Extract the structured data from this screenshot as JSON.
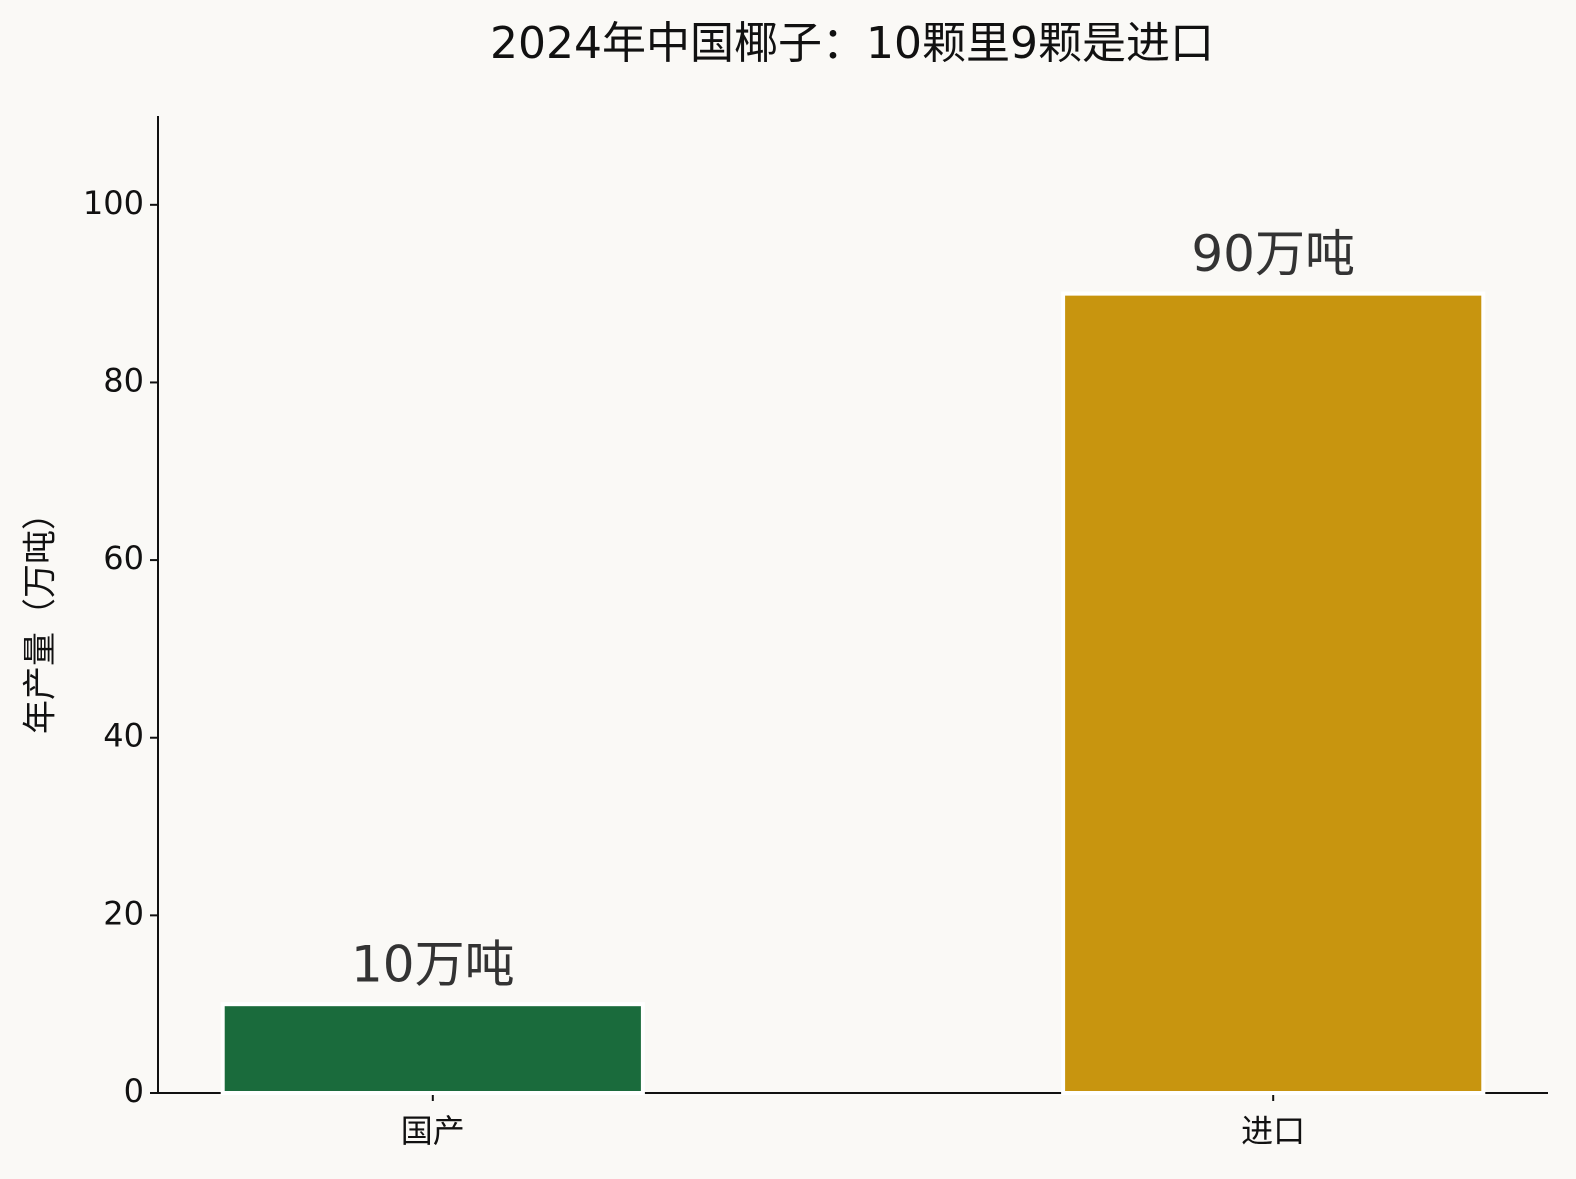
{
  "chart_data": {
    "type": "bar",
    "title": "2024年中国椰子：10颗里9颗是进口",
    "y_label": "年产量（万吨）",
    "categories": [
      "国产",
      "进口"
    ],
    "values": [
      10,
      90
    ],
    "value_labels": [
      "10万吨",
      "90万吨"
    ],
    "colors": [
      "#1a6b3c",
      "#c8950f"
    ],
    "ylim": [
      0,
      110
    ],
    "yticks": [
      0,
      20,
      40,
      60,
      80,
      100
    ],
    "grid": false
  }
}
